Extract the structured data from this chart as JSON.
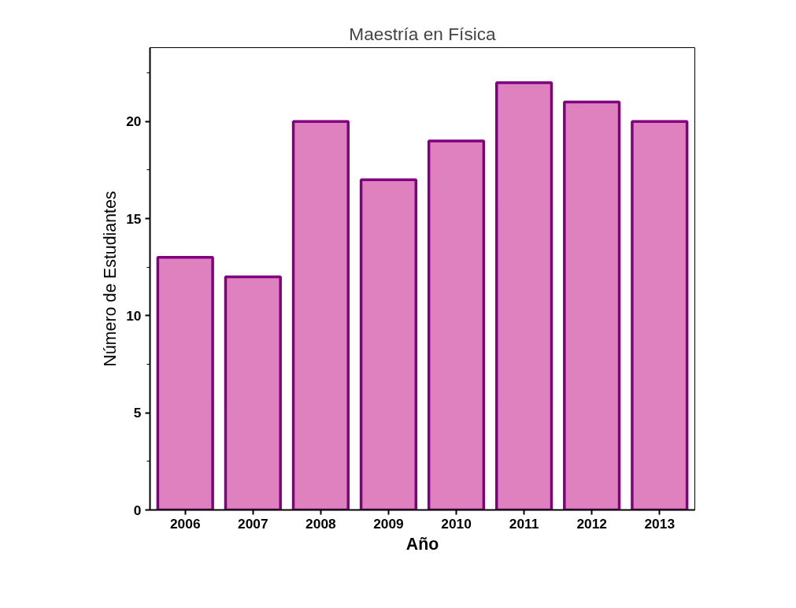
{
  "chart_data": {
    "type": "bar",
    "title": "Maestría en Física",
    "xlabel": "Año",
    "ylabel": "Número de Estudiantes",
    "categories": [
      "2006",
      "2007",
      "2008",
      "2009",
      "2010",
      "2011",
      "2012",
      "2013"
    ],
    "values": [
      13,
      12,
      20,
      17,
      19,
      22,
      21,
      20
    ],
    "color": "#df80bf",
    "ylim": [
      0,
      23.8
    ],
    "yticks": [
      0,
      5,
      10,
      15,
      20
    ],
    "grid": false
  }
}
